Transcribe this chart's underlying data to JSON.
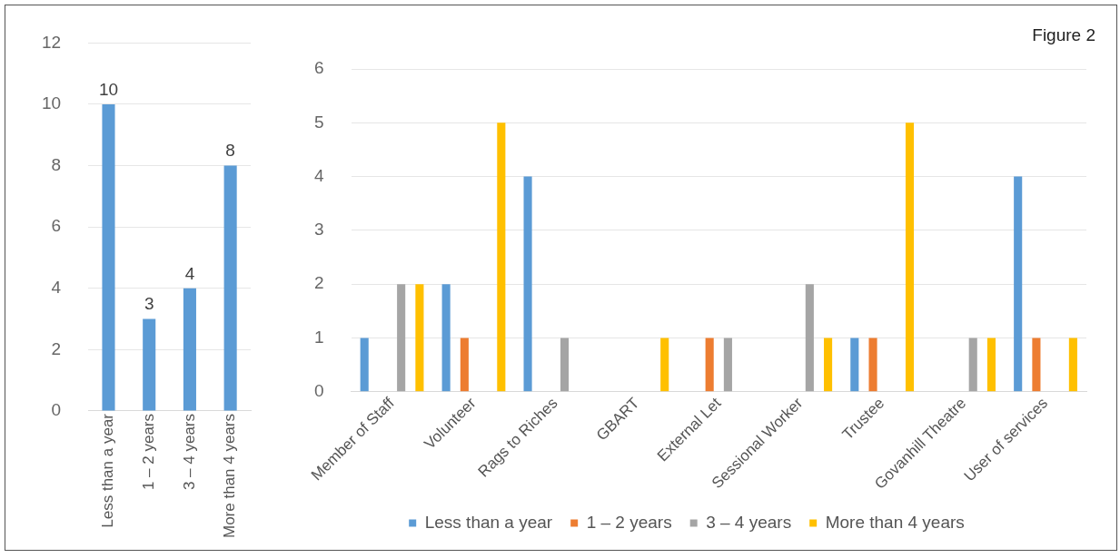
{
  "chart_data": [
    {
      "type": "bar",
      "categories": [
        "Less than a year",
        "1 – 2 years",
        "3 – 4 years",
        "More than 4 years"
      ],
      "values": [
        10,
        3,
        4,
        8
      ],
      "color": "#5b9bd5",
      "ylim": [
        0,
        12
      ],
      "yticks": [
        0,
        2,
        4,
        6,
        8,
        10,
        12
      ],
      "grid": "y",
      "data_labels": true
    },
    {
      "type": "bar",
      "annotations": [
        "Figure 2"
      ],
      "categories": [
        "Member of Staff",
        "Volunteer",
        "Rags to Riches",
        "GBART",
        "External Let",
        "Sessional Worker",
        "Trustee",
        "Govanhill Theatre",
        "User of services"
      ],
      "series": [
        {
          "name": "Less than a year",
          "color": "#5b9bd5",
          "values": [
            1,
            2,
            4,
            0,
            0,
            0,
            1,
            0,
            4
          ]
        },
        {
          "name": "1 – 2 years",
          "color": "#ed7d31",
          "values": [
            0,
            1,
            0,
            0,
            1,
            0,
            1,
            0,
            1
          ]
        },
        {
          "name": "3 – 4 years",
          "color": "#a5a5a5",
          "values": [
            2,
            0,
            1,
            0,
            1,
            2,
            0,
            1,
            0
          ]
        },
        {
          "name": "More than 4 years",
          "color": "#ffc000",
          "values": [
            2,
            5,
            0,
            1,
            0,
            1,
            5,
            1,
            1
          ]
        }
      ],
      "ylim": [
        0,
        6
      ],
      "yticks": [
        0,
        1,
        2,
        3,
        4,
        5,
        6
      ],
      "grid": "y",
      "legend": "bottom"
    }
  ]
}
